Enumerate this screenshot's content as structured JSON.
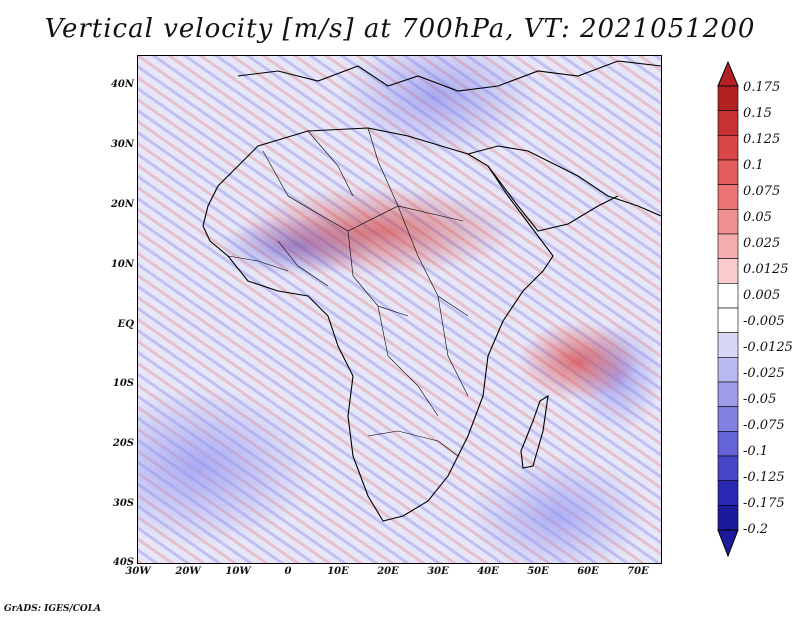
{
  "title": "Vertical velocity [m/s] at 700hPa, VT: 2021051200",
  "lat_labels": [
    "40N",
    "30N",
    "20N",
    "10N",
    "EQ",
    "10S",
    "20S",
    "30S",
    "40S"
  ],
  "lon_labels": [
    "30W",
    "20W",
    "10W",
    "0",
    "10E",
    "20E",
    "30E",
    "40E",
    "50E",
    "60E",
    "70E"
  ],
  "colorbar": {
    "labels": [
      "0.175",
      "0.15",
      "0.125",
      "0.1",
      "0.075",
      "0.05",
      "0.025",
      "0.0125",
      "0.005",
      "-0.005",
      "-0.0125",
      "-0.025",
      "-0.05",
      "-0.075",
      "-0.1",
      "-0.125",
      "-0.175",
      "-0.2"
    ],
    "colors": [
      "#b22222",
      "#c83232",
      "#d84646",
      "#e25c5c",
      "#ea7474",
      "#f09090",
      "#f5aeae",
      "#f9cccc",
      "#ffffff",
      "#ffffff",
      "#d7d7f6",
      "#b9b9ef",
      "#9d9de8",
      "#8080e0",
      "#6464d7",
      "#4646c8",
      "#2828b4",
      "#1a1a9a"
    ]
  },
  "footer": "GrADS: IGES/COLA"
}
